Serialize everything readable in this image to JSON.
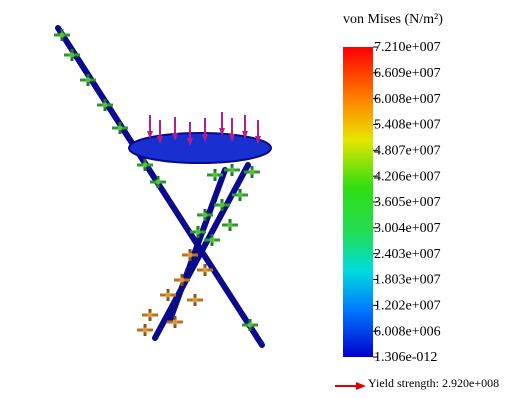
{
  "legend": {
    "title": "von Mises (N/m²)",
    "ticks": [
      "7.210e+007",
      "6.609e+007",
      "6.008e+007",
      "5.408e+007",
      "4.807e+007",
      "4.206e+007",
      "3.605e+007",
      "3.004e+007",
      "2.403e+007",
      "1.803e+007",
      "1.202e+007",
      "6.008e+006",
      "1.306e-012"
    ]
  },
  "yield_strength": "Yield strength: 2.920e+008"
}
